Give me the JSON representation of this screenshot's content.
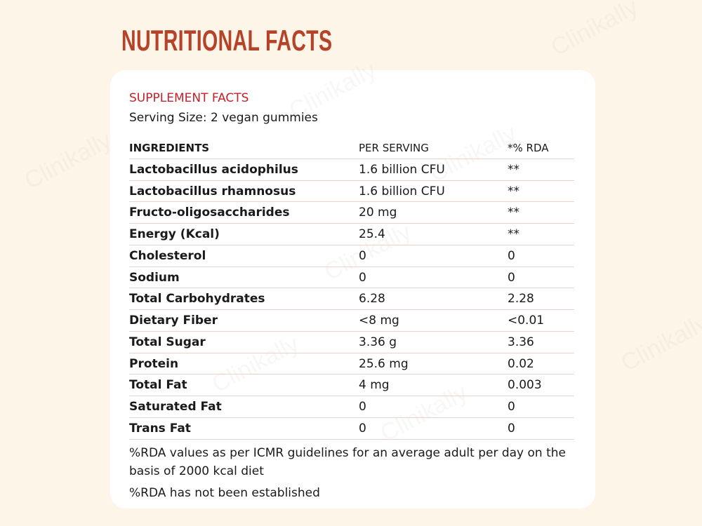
{
  "header": {
    "title": "NUTRITIONAL FACTS"
  },
  "watermark": "Clinikally",
  "card": {
    "heading": "SUPPLEMENT FACTS",
    "serving": "Serving Size: 2 vegan gummies"
  },
  "table": {
    "header": [
      "INGREDIENTS",
      "PER SERVING",
      "*% RDA"
    ],
    "rows": [
      [
        "Lactobacillus acidophilus",
        "1.6 billion CFU",
        "**"
      ],
      [
        "Lactobacillus rhamnosus",
        "1.6 billion CFU",
        "**"
      ],
      [
        "Fructo-oligosaccharides",
        "20 mg",
        "**"
      ],
      [
        "Energy (Kcal)",
        "25.4",
        "**"
      ],
      [
        "Cholesterol",
        "0",
        "0"
      ],
      [
        "Sodium",
        "0",
        "0"
      ],
      [
        "Total Carbohydrates",
        "6.28",
        "2.28"
      ],
      [
        "Dietary Fiber",
        "<8 mg",
        "<0.01"
      ],
      [
        "Total Sugar",
        "3.36 g",
        "3.36"
      ],
      [
        "Protein",
        "25.6 mg",
        "0.02"
      ],
      [
        "Total Fat",
        "4 mg",
        "0.003"
      ],
      [
        "Saturated Fat",
        "0",
        "0"
      ],
      [
        "Trans Fat",
        "0",
        "0"
      ]
    ]
  },
  "notes": [
    "%RDA values as per ICMR guidelines for an average adult per day on the basis of 2000 kcal diet",
    "%RDA has not been established"
  ]
}
